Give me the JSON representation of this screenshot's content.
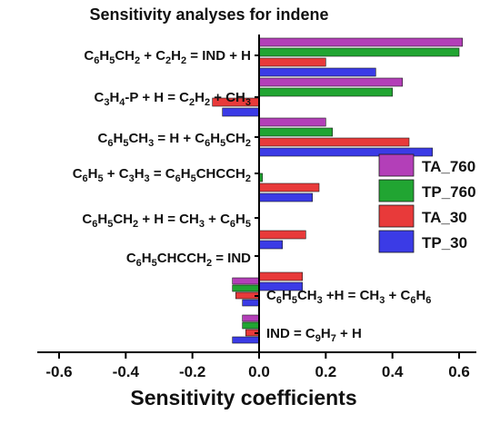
{
  "chart_data": {
    "type": "bar",
    "orientation": "horizontal",
    "title": "Sensitivity analyses for indene",
    "xlabel": "Sensitivity coefficients",
    "ylabel": "",
    "xlim": [
      -0.7,
      0.7
    ],
    "xticks": [
      -0.6,
      -0.4,
      -0.2,
      0.0,
      0.2,
      0.4,
      0.6
    ],
    "xtick_labels": [
      "-0.6",
      "-0.4",
      "-0.2",
      "0.0",
      "0.2",
      "0.4",
      "0.6"
    ],
    "categories": [
      "C6H5CH2 + C2H2 = IND + H",
      "C3H4-P + H = C2H2 + CH3",
      "C6H5CH3 = H + C6H5CH2",
      "C6H5 + C3H3 = C6H5CHCCH2",
      "C6H5CH2 + H = CH3 + C6H5",
      "C6H5CHCCH2 = IND",
      "C6H5CH3 +H = CH3 + C6H6",
      "IND = C9H7 + H"
    ],
    "series": [
      {
        "name": "TA_760",
        "color": "#b33fb8",
        "values": [
          0.61,
          0.43,
          0.2,
          0.0,
          0.0,
          0.0,
          -0.08,
          -0.05
        ]
      },
      {
        "name": "TP_760",
        "color": "#21a532",
        "values": [
          0.6,
          0.4,
          0.22,
          0.01,
          0.0,
          0.0,
          -0.08,
          -0.05
        ]
      },
      {
        "name": "TA_30",
        "color": "#e83a3a",
        "values": [
          0.2,
          -0.14,
          0.45,
          0.18,
          0.14,
          0.13,
          -0.07,
          -0.04
        ]
      },
      {
        "name": "TP_30",
        "color": "#3b3be6",
        "values": [
          0.35,
          -0.11,
          0.52,
          0.16,
          0.07,
          0.13,
          -0.05,
          -0.08
        ]
      }
    ],
    "legend_position": "right",
    "grid": false
  }
}
